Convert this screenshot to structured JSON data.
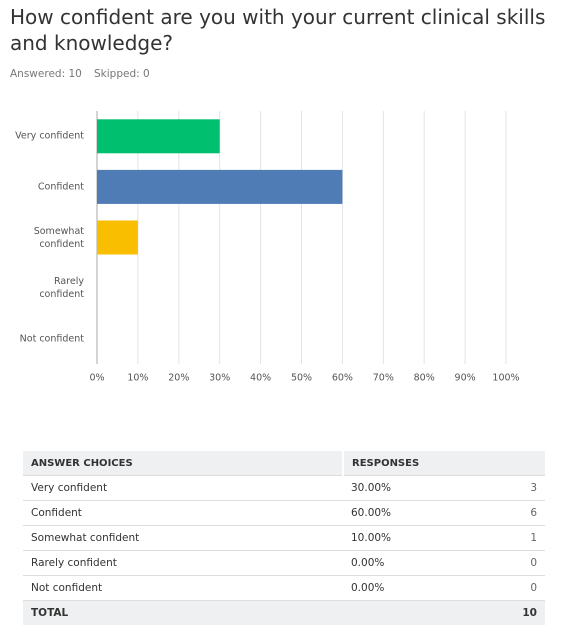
{
  "title": "How confident are you with your current clinical skills and knowledge?",
  "answered": "Answered: 10",
  "skipped": "Skipped: 0",
  "chart_data": {
    "type": "bar",
    "orientation": "horizontal",
    "categories": [
      "Very confident",
      "Confident",
      "Somewhat confident",
      "Rarely confident",
      "Not confident"
    ],
    "values": [
      30,
      60,
      10,
      0,
      0
    ],
    "colors": [
      "#00bf6f",
      "#507cb6",
      "#f9be00",
      "#ec5d45",
      "#6b4c9a"
    ],
    "xlim": [
      0,
      100
    ],
    "xticks": [
      {
        "value": 0,
        "label": "0%"
      },
      {
        "value": 10,
        "label": "10%"
      },
      {
        "value": 20,
        "label": "20%"
      },
      {
        "value": 30,
        "label": "30%"
      },
      {
        "value": 40,
        "label": "40%"
      },
      {
        "value": 50,
        "label": "50%"
      },
      {
        "value": 60,
        "label": "60%"
      },
      {
        "value": 70,
        "label": "70%"
      },
      {
        "value": 80,
        "label": "80%"
      },
      {
        "value": 90,
        "label": "90%"
      },
      {
        "value": 100,
        "label": "100%"
      }
    ],
    "grid": true
  },
  "table": {
    "headers": [
      "ANSWER CHOICES",
      "RESPONSES"
    ],
    "rows": [
      [
        "Very confident",
        "30.00%",
        3
      ],
      [
        "Confident",
        "60.00%",
        6
      ],
      [
        "Somewhat confident",
        "10.00%",
        1
      ],
      [
        "Rarely confident",
        "0.00%",
        0
      ],
      [
        "Not confident",
        "0.00%",
        0
      ]
    ],
    "total": [
      "TOTAL",
      10
    ]
  }
}
